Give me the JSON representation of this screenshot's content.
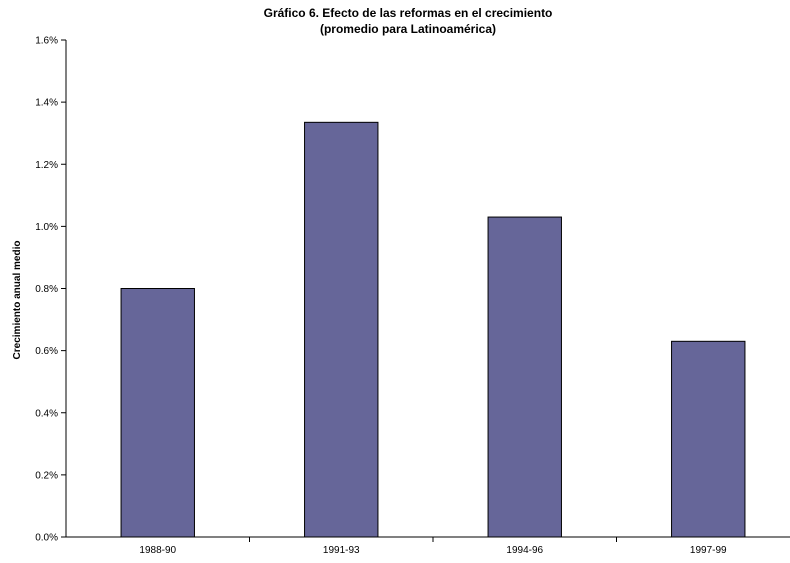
{
  "chart_data": {
    "type": "bar",
    "title": "Gráfico 6. Efecto de las reformas en el crecimiento",
    "subtitle": "(promedio para Latinoamérica)",
    "xlabel": "",
    "ylabel": "Crecimiento anual medio",
    "categories": [
      "1988-90",
      "1991-93",
      "1994-96",
      "1997-99"
    ],
    "values": [
      0.8,
      1.335,
      1.03,
      0.63
    ],
    "ylim": [
      0,
      1.6
    ],
    "yticks": [
      0,
      0.2,
      0.4,
      0.6,
      0.8,
      1.0,
      1.2,
      1.4,
      1.6
    ],
    "ytick_labels": [
      "0.0%",
      "0.2%",
      "0.4%",
      "0.6%",
      "0.8%",
      "1.0%",
      "1.2%",
      "1.4%",
      "1.6%"
    ],
    "bar_color": "#666699",
    "grid": false,
    "legend": "none"
  }
}
